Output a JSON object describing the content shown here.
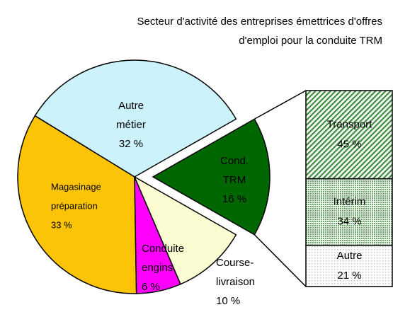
{
  "chart_data": {
    "type": "pie-of-bar",
    "title": [
      "Secteur d'activité des entreprises émettrices d'offres",
      "d'emploi pour la conduite TRM"
    ],
    "categories": [
      [
        "Autre",
        "métier"
      ],
      [
        "Magasinage",
        "préparation"
      ],
      [
        "Conduite",
        "engins"
      ],
      [
        "Course-",
        "livraison"
      ],
      [
        "Cond.",
        "TRM"
      ]
    ],
    "values": [
      32,
      33,
      6,
      10,
      16
    ],
    "value_labels": [
      "32 %",
      "33 %",
      "6 %",
      "10 %",
      "16 %"
    ],
    "colors": [
      "#ccf2fb",
      "#fbc406",
      "#ff00ff",
      "#fcfcd2",
      "#006600"
    ],
    "bar": {
      "categories": [
        "Transport",
        "Intérim",
        "Autre"
      ],
      "values": [
        45,
        34,
        21
      ],
      "value_labels": [
        "45 %",
        "34 %",
        "21 %"
      ],
      "colors": [
        "#3c8c3c",
        "#6aa86a",
        "#c8c8c8"
      ]
    }
  }
}
